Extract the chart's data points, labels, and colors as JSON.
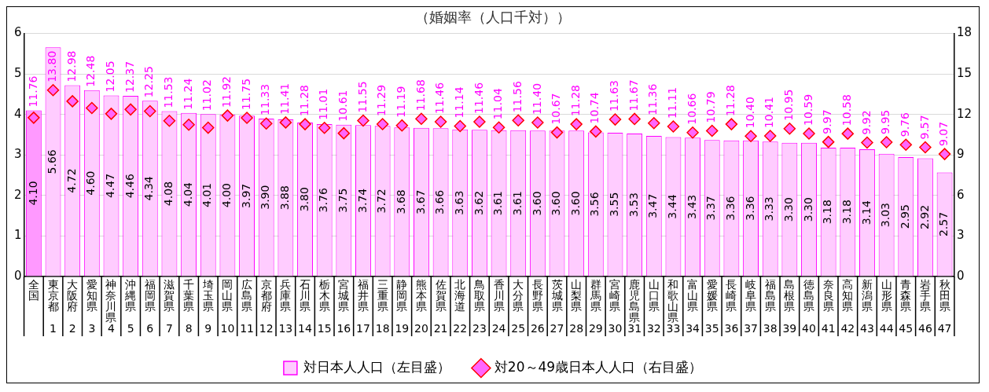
{
  "chart_data": {
    "type": "bar",
    "title": "（婚姻率（人口千対））",
    "categories": [
      "全国",
      "東京都\n1",
      "大阪府\n2",
      "愛知県\n3",
      "神奈川県\n4",
      "沖縄県\n5",
      "福岡県\n6",
      "滋賀県\n7",
      "千葉県\n8",
      "埼玉県\n9",
      "岡山県\n10",
      "広島県\n11",
      "京都府\n12",
      "兵庫県\n13",
      "石川県\n14",
      "栃木県\n15",
      "宮城県\n16",
      "福井県\n17",
      "三重県\n18",
      "静岡県\n19",
      "熊本県\n20",
      "佐賀県\n21",
      "北海道\n22",
      "鳥取県\n23",
      "香川県\n24",
      "大分県\n25",
      "長野県\n26",
      "茨城県\n27",
      "山梨県\n28",
      "群馬県\n29",
      "宮崎県\n30",
      "鹿児島県\n31",
      "山口県\n32",
      "和歌山県\n33",
      "富山県\n34",
      "愛媛県\n35",
      "長崎県\n36",
      "岐阜県\n37",
      "福島県\n38",
      "島根県\n39",
      "徳島県\n40",
      "奈良県\n41",
      "高知県\n42",
      "新潟県\n43",
      "山形県\n44",
      "青森県\n45",
      "岩手県\n46",
      "秋田県\n47"
    ],
    "series": [
      {
        "name": "対日本人人口（左目盛）",
        "type": "bar",
        "color": "#ffccff",
        "colors": [
          "#ff99ff",
          "#ffccff",
          "#ffccff",
          "#ffccff",
          "#ffccff",
          "#ffccff",
          "#ffccff",
          "#ffccff",
          "#ffccff",
          "#ffccff",
          "#ffccff",
          "#ffccff",
          "#ffccff",
          "#ffccff",
          "#ffccff",
          "#ffccff",
          "#ffccff",
          "#ffccff",
          "#ffccff",
          "#ffccff",
          "#ffccff",
          "#ffccff",
          "#ffccff",
          "#ffccff",
          "#ffccff",
          "#ffccff",
          "#ffccff",
          "#ffccff",
          "#ffccff",
          "#ffccff",
          "#ffccff",
          "#ffccff",
          "#ffccff",
          "#ffccff",
          "#ffccff",
          "#ffccff",
          "#ffccff",
          "#ffccff",
          "#ffccff",
          "#ffccff",
          "#ffccff",
          "#ffccff",
          "#ffccff",
          "#ffccff",
          "#ffccff",
          "#ffccff",
          "#ffccff",
          "#ffccff"
        ],
        "values": [
          4.1,
          5.66,
          4.72,
          4.6,
          4.47,
          4.46,
          4.34,
          4.08,
          4.04,
          4.01,
          4.0,
          3.97,
          3.9,
          3.88,
          3.8,
          3.76,
          3.75,
          3.74,
          3.72,
          3.68,
          3.67,
          3.66,
          3.63,
          3.62,
          3.61,
          3.61,
          3.6,
          3.6,
          3.6,
          3.56,
          3.55,
          3.53,
          3.47,
          3.44,
          3.43,
          3.37,
          3.36,
          3.36,
          3.33,
          3.3,
          3.3,
          3.18,
          3.18,
          3.14,
          3.03,
          2.95,
          2.92,
          2.57
        ],
        "value_labels": [
          "4.10",
          "5.66",
          "4.72",
          "4.60",
          "4.47",
          "4.46",
          "4.34",
          "4.08",
          "4.04",
          "4.01",
          "4.00",
          "3.97",
          "3.90",
          "3.88",
          "3.80",
          "3.76",
          "3.75",
          "3.74",
          "3.72",
          "3.68",
          "3.67",
          "3.66",
          "3.63",
          "3.62",
          "3.61",
          "3.61",
          "3.60",
          "3.60",
          "3.60",
          "3.56",
          "3.55",
          "3.53",
          "3.47",
          "3.44",
          "3.43",
          "3.37",
          "3.36",
          "3.36",
          "3.33",
          "3.30",
          "3.30",
          "3.18",
          "3.18",
          "3.14",
          "3.03",
          "2.95",
          "2.92",
          "2.57"
        ]
      },
      {
        "name": "対20～49歳日本人人口（右目盛）",
        "type": "scatter",
        "axis": "y2",
        "color": "#ff66ff",
        "marker": "diamond",
        "values": [
          11.76,
          13.8,
          12.98,
          12.48,
          12.05,
          12.37,
          12.25,
          11.53,
          11.24,
          11.02,
          11.92,
          11.75,
          11.33,
          11.41,
          11.28,
          11.01,
          10.61,
          11.55,
          11.29,
          11.19,
          11.68,
          11.46,
          11.14,
          11.46,
          11.04,
          11.56,
          11.4,
          10.67,
          11.28,
          10.74,
          11.63,
          11.67,
          11.36,
          11.11,
          10.66,
          10.79,
          11.28,
          10.4,
          10.41,
          10.95,
          10.59,
          9.97,
          10.58,
          9.92,
          9.95,
          9.76,
          9.57,
          9.07
        ],
        "value_labels": [
          "11.76",
          "13.80",
          "12.98",
          "12.48",
          "12.05",
          "12.37",
          "12.25",
          "11.53",
          "11.24",
          "11.02",
          "11.92",
          "11.75",
          "11.33",
          "11.41",
          "11.28",
          "11.01",
          "10.61",
          "11.55",
          "11.29",
          "11.19",
          "11.68",
          "11.46",
          "11.14",
          "11.46",
          "11.04",
          "11.56",
          "11.40",
          "10.67",
          "11.28",
          "10.74",
          "11.63",
          "11.67",
          "11.36",
          "11.11",
          "10.66",
          "10.79",
          "11.28",
          "10.40",
          "10.41",
          "10.95",
          "10.59",
          "9.97",
          "10.58",
          "9.92",
          "9.95",
          "9.76",
          "9.57",
          "9.07"
        ]
      }
    ],
    "ylim": [
      0,
      6
    ],
    "yticks": [
      0,
      1,
      2,
      3,
      4,
      5,
      6
    ],
    "y2lim": [
      0,
      18
    ],
    "y2ticks": [
      0,
      3,
      6,
      9,
      12,
      15,
      18
    ],
    "grid": "y",
    "legend": "bottom"
  }
}
